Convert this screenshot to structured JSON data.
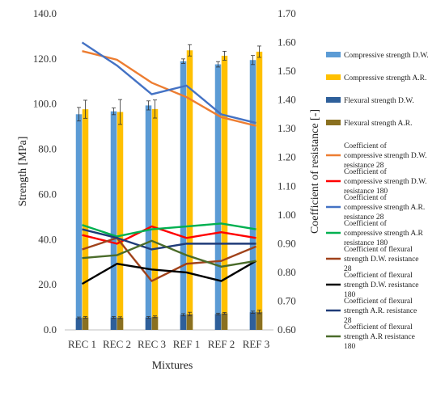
{
  "chart_data": {
    "type": "bar",
    "categories": [
      "REC 1",
      "REC 2",
      "REC 3",
      "REF 1",
      "REF 2",
      "REF 3"
    ],
    "xlabel": "Mixtures",
    "ylabel": "Strength [MPa]",
    "y2label": "Coefficient of resistance  [-]",
    "ylim": [
      0,
      140
    ],
    "y2lim": [
      0.6,
      1.7
    ],
    "yticks": [
      "0.0",
      "20.0",
      "40.0",
      "60.0",
      "80.0",
      "100.0",
      "120.0",
      "140.0"
    ],
    "y2ticks": [
      "0.60",
      "0.70",
      "0.80",
      "0.90",
      "1.00",
      "1.10",
      "1.20",
      "1.30",
      "1.40",
      "1.50",
      "1.60",
      "1.70"
    ],
    "grid": false,
    "legend_position": "right",
    "bar_series": [
      {
        "name": "Compressive strength D.W.",
        "color": "#5b9bd5",
        "values": [
          95.5,
          96.8,
          99.4,
          119.0,
          117.6,
          119.5
        ],
        "errors": [
          3.0,
          1.5,
          2.0,
          1.0,
          1.2,
          2.0
        ]
      },
      {
        "name": "Compressive strength A.R.",
        "color": "#ffc000",
        "values": [
          97.7,
          96.5,
          97.8,
          123.8,
          121.4,
          123.2
        ],
        "errors": [
          4.0,
          5.5,
          4.0,
          2.5,
          2.0,
          2.5
        ]
      },
      {
        "name": "Flexural strength D.W.",
        "color": "#2e5f9a",
        "values": [
          5.3,
          5.5,
          5.5,
          6.7,
          7.0,
          7.8
        ],
        "errors": [
          0.4,
          0.4,
          0.4,
          0.5,
          0.4,
          0.5
        ]
      },
      {
        "name": "Flexural strength A.R.",
        "color": "#8a7020",
        "values": [
          5.5,
          5.4,
          5.8,
          7.0,
          7.3,
          8.0
        ],
        "errors": [
          0.4,
          0.4,
          0.4,
          0.8,
          0.4,
          0.8
        ]
      }
    ],
    "line_series": [
      {
        "name": "Coefficient of compressive strength D.W. resistance 28",
        "color": "#ed7d31",
        "values": [
          1.57,
          1.54,
          1.46,
          1.41,
          1.34,
          1.31
        ]
      },
      {
        "name": "Coefficient of compressive strength D.W. resistance 180",
        "color": "#ff0000",
        "values": [
          0.93,
          0.9,
          0.96,
          0.92,
          0.94,
          0.92
        ]
      },
      {
        "name": "Coefficient of compressive strength A.R. resistance 28",
        "color": "#4472c4",
        "values": [
          1.6,
          1.52,
          1.42,
          1.45,
          1.35,
          1.32
        ]
      },
      {
        "name": "Coefficient of compressive strength A.R resistance 180",
        "color": "#00b050",
        "values": [
          0.965,
          0.925,
          0.95,
          0.96,
          0.97,
          0.95
        ]
      },
      {
        "name": "Coefficient of flexural strength D.W. resistance 28",
        "color": "#a0421a",
        "values": [
          0.88,
          0.92,
          0.77,
          0.83,
          0.84,
          0.89
        ]
      },
      {
        "name": "Coefficient of  flexural strength D.W. resistance 180",
        "color": "#000000",
        "values": [
          0.76,
          0.83,
          0.81,
          0.8,
          0.77,
          0.84
        ]
      },
      {
        "name": "Coefficient of  flexural strength A.R. resistance 28",
        "color": "#1f3b78",
        "values": [
          0.95,
          0.92,
          0.88,
          0.9,
          0.9,
          0.9
        ]
      },
      {
        "name": "Coefficient of  flexural strength A.R resistance 180",
        "color": "#4a6b2a",
        "values": [
          0.85,
          0.86,
          0.91,
          0.86,
          0.82,
          0.84
        ]
      }
    ]
  }
}
